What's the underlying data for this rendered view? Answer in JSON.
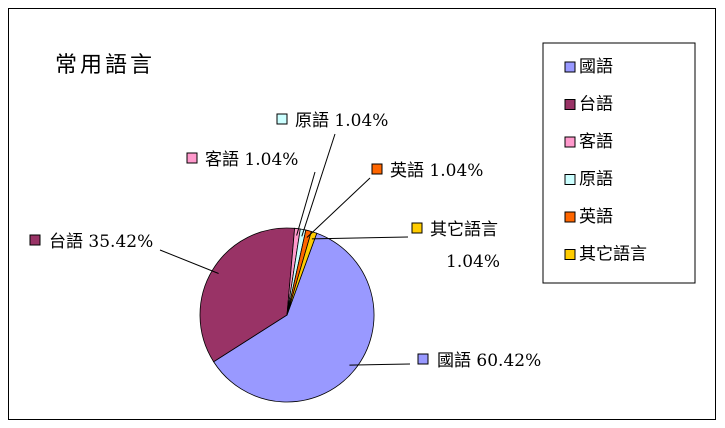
{
  "chart_data": {
    "type": "pie",
    "title": "常用語言",
    "categories": [
      "國語",
      "台語",
      "客語",
      "原語",
      "英語",
      "其它語言"
    ],
    "values": [
      60.42,
      35.42,
      1.04,
      1.04,
      1.04,
      1.04
    ],
    "value_unit": "%",
    "colors": [
      "#9999ff",
      "#993366",
      "#ff99cc",
      "#ccffff",
      "#ff6600",
      "#ffcc00"
    ],
    "data_labels": [
      {
        "category": "國語",
        "text": "國語 60.42%"
      },
      {
        "category": "台語",
        "text": "台語 35.42%"
      },
      {
        "category": "客語",
        "text": "客語 1.04%"
      },
      {
        "category": "原語",
        "text": "原語 1.04%"
      },
      {
        "category": "英語",
        "text": "英語 1.04%"
      },
      {
        "category": "其它語言",
        "text": "其它語言",
        "text2": "1.04%"
      }
    ],
    "legend": {
      "placement": "right",
      "entries": [
        "國語",
        "台語",
        "客語",
        "原語",
        "英語",
        "其它語言"
      ]
    }
  }
}
